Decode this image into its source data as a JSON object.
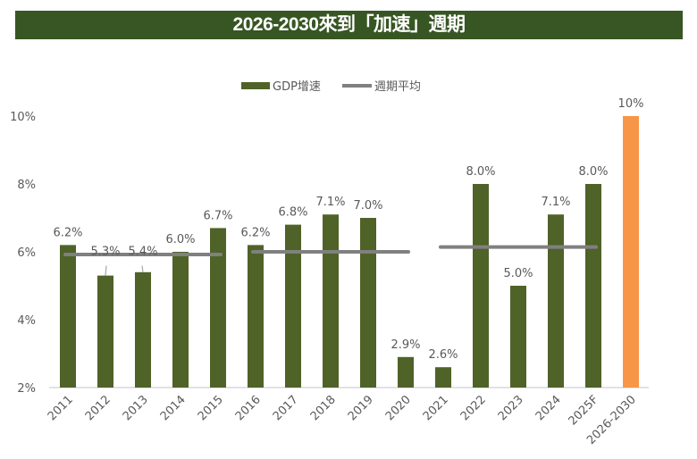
{
  "chart_data": {
    "type": "bar",
    "title": "2026-2030來到「加速」週期",
    "xlabel": "",
    "ylabel": "",
    "ylim": [
      2,
      10
    ],
    "yticks": [
      2,
      4,
      6,
      8,
      10
    ],
    "ytick_labels": [
      "2%",
      "4%",
      "6%",
      "8%",
      "10%"
    ],
    "grid": false,
    "legend_position": "top-center",
    "categories": [
      "2011",
      "2012",
      "2013",
      "2014",
      "2015",
      "2016",
      "2017",
      "2018",
      "2019",
      "2020",
      "2021",
      "2022",
      "2023",
      "2024",
      "2025F",
      "2026-2030"
    ],
    "series": [
      {
        "name": "GDP增速",
        "type": "bar",
        "color": "#4F6228",
        "highlight_color": "#F79646",
        "highlight_index": 15,
        "values": [
          6.2,
          5.3,
          5.4,
          6.0,
          6.7,
          6.2,
          6.8,
          7.1,
          7.0,
          2.9,
          2.6,
          8.0,
          5.0,
          7.1,
          8.0,
          10
        ],
        "labels": [
          "6.2%",
          "5.3%",
          "5.4%",
          "6.0%",
          "6.7%",
          "6.2%",
          "6.8%",
          "7.1%",
          "7.0%",
          "2.9%",
          "2.6%",
          "8.0%",
          "5.0%",
          "7.1%",
          "8.0%",
          "10%"
        ]
      },
      {
        "name": "週期平均",
        "type": "line",
        "color": "#808080",
        "segments": [
          {
            "from": "2011",
            "to": "2015",
            "value": 5.92
          },
          {
            "from": "2016",
            "to": "2020",
            "value": 6.0
          },
          {
            "from": "2021",
            "to": "2025F",
            "value": 6.14
          }
        ]
      }
    ]
  },
  "legend": {
    "items": [
      {
        "label": "GDP增速",
        "color": "#4F6228"
      },
      {
        "label": "週期平均",
        "color": "#808080"
      }
    ]
  }
}
